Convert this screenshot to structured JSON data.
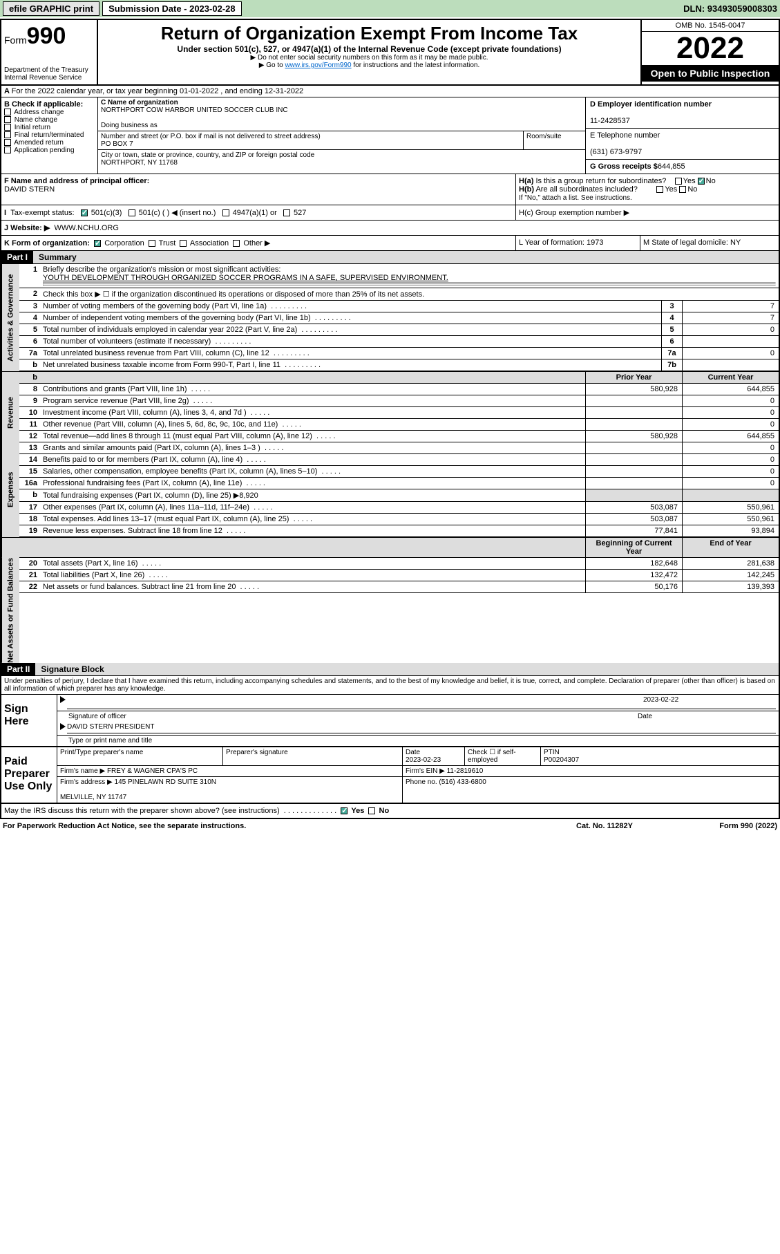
{
  "topbar": {
    "efile": "efile GRAPHIC print",
    "sub_label": "Submission Date - 2023-02-28",
    "dln": "DLN: 93493059008303"
  },
  "header": {
    "form_prefix": "Form",
    "form_num": "990",
    "dept": "Department of the Treasury",
    "irs": "Internal Revenue Service",
    "title": "Return of Organization Exempt From Income Tax",
    "subtitle": "Under section 501(c), 527, or 4947(a)(1) of the Internal Revenue Code (except private foundations)",
    "note1": "▶ Do not enter social security numbers on this form as it may be made public.",
    "note2_pre": "▶ Go to ",
    "note2_link": "www.irs.gov/Form990",
    "note2_post": " for instructions and the latest information.",
    "omb": "OMB No. 1545-0047",
    "year": "2022",
    "open": "Open to Public Inspection"
  },
  "section_a": {
    "taxyear": "For the 2022 calendar year, or tax year beginning 01-01-2022    , and ending 12-31-2022",
    "b_label": "B Check if applicable:",
    "b_items": [
      "Address change",
      "Name change",
      "Initial return",
      "Final return/terminated",
      "Amended return",
      "Application pending"
    ],
    "c_label": "C Name of organization",
    "org_name": "NORTHPORT COW HARBOR UNITED SOCCER CLUB INC",
    "dba_label": "Doing business as",
    "addr_label": "Number and street (or P.O. box if mail is not delivered to street address)",
    "room_label": "Room/suite",
    "addr": "PO BOX 7",
    "city_label": "City or town, state or province, country, and ZIP or foreign postal code",
    "city": "NORTHPORT, NY  11768",
    "d_label": "D Employer identification number",
    "ein": "11-2428537",
    "e_label": "E Telephone number",
    "phone": "(631) 673-9797",
    "g_label": "G Gross receipts $",
    "gross": "644,855",
    "f_label": "F  Name and address of principal officer:",
    "officer": "DAVID STERN",
    "ha_label": "H(a)  Is this a group return for subordinates?",
    "hb_label": "H(b)  Are all subordinates included?",
    "hb_note": "If \"No,\" attach a list. See instructions.",
    "hc_label": "H(c)  Group exemption number ▶",
    "yes": "Yes",
    "no": "No"
  },
  "section_i": {
    "label": "Tax-exempt status:",
    "opt1": "501(c)(3)",
    "opt2": "501(c) (  ) ◀ (insert no.)",
    "opt3": "4947(a)(1) or",
    "opt4": "527"
  },
  "section_j": {
    "label": "J   Website: ▶",
    "value": "WWW.NCHU.ORG"
  },
  "section_k": {
    "label": "K Form of organization:",
    "opts": [
      "Corporation",
      "Trust",
      "Association",
      "Other ▶"
    ],
    "l_label": "L Year of formation: 1973",
    "m_label": "M State of legal domicile: NY"
  },
  "part1": {
    "hdr": "Part I",
    "title": "Summary",
    "tab_gov": "Activities & Governance",
    "tab_rev": "Revenue",
    "tab_exp": "Expenses",
    "tab_net": "Net Assets or Fund Balances",
    "l1_label": "Briefly describe the organization's mission or most significant activities:",
    "l1_mission": "YOUTH DEVELOPMENT THROUGH ORGANIZED SOCCER PROGRAMS IN A SAFE, SUPERVISED ENVIRONMENT.",
    "l2_label": "Check this box ▶ ☐ if the organization discontinued its operations or disposed of more than 25% of its net assets.",
    "lines_gov": [
      {
        "n": "3",
        "d": "Number of voting members of the governing body (Part VI, line 1a)",
        "box": "3",
        "v": "7"
      },
      {
        "n": "4",
        "d": "Number of independent voting members of the governing body (Part VI, line 1b)",
        "box": "4",
        "v": "7"
      },
      {
        "n": "5",
        "d": "Total number of individuals employed in calendar year 2022 (Part V, line 2a)",
        "box": "5",
        "v": "0"
      },
      {
        "n": "6",
        "d": "Total number of volunteers (estimate if necessary)",
        "box": "6",
        "v": ""
      },
      {
        "n": "7a",
        "d": "Total unrelated business revenue from Part VIII, column (C), line 12",
        "box": "7a",
        "v": "0"
      },
      {
        "n": "b",
        "d": "Net unrelated business taxable income from Form 990-T, Part I, line 11",
        "box": "7b",
        "v": ""
      }
    ],
    "col_prior": "Prior Year",
    "col_curr": "Current Year",
    "lines_rev": [
      {
        "n": "8",
        "d": "Contributions and grants (Part VIII, line 1h)",
        "p": "580,928",
        "c": "644,855"
      },
      {
        "n": "9",
        "d": "Program service revenue (Part VIII, line 2g)",
        "p": "",
        "c": "0"
      },
      {
        "n": "10",
        "d": "Investment income (Part VIII, column (A), lines 3, 4, and 7d )",
        "p": "",
        "c": "0"
      },
      {
        "n": "11",
        "d": "Other revenue (Part VIII, column (A), lines 5, 6d, 8c, 9c, 10c, and 11e)",
        "p": "",
        "c": "0"
      },
      {
        "n": "12",
        "d": "Total revenue—add lines 8 through 11 (must equal Part VIII, column (A), line 12)",
        "p": "580,928",
        "c": "644,855"
      }
    ],
    "lines_exp": [
      {
        "n": "13",
        "d": "Grants and similar amounts paid (Part IX, column (A), lines 1–3 )",
        "p": "",
        "c": "0"
      },
      {
        "n": "14",
        "d": "Benefits paid to or for members (Part IX, column (A), line 4)",
        "p": "",
        "c": "0"
      },
      {
        "n": "15",
        "d": "Salaries, other compensation, employee benefits (Part IX, column (A), lines 5–10)",
        "p": "",
        "c": "0"
      },
      {
        "n": "16a",
        "d": "Professional fundraising fees (Part IX, column (A), line 11e)",
        "p": "",
        "c": "0"
      },
      {
        "n": "b",
        "d": "Total fundraising expenses (Part IX, column (D), line 25) ▶8,920",
        "p": null,
        "c": null
      },
      {
        "n": "17",
        "d": "Other expenses (Part IX, column (A), lines 11a–11d, 11f–24e)",
        "p": "503,087",
        "c": "550,961"
      },
      {
        "n": "18",
        "d": "Total expenses. Add lines 13–17 (must equal Part IX, column (A), line 25)",
        "p": "503,087",
        "c": "550,961"
      },
      {
        "n": "19",
        "d": "Revenue less expenses. Subtract line 18 from line 12",
        "p": "77,841",
        "c": "93,894"
      }
    ],
    "col_beg": "Beginning of Current Year",
    "col_end": "End of Year",
    "lines_net": [
      {
        "n": "20",
        "d": "Total assets (Part X, line 16)",
        "p": "182,648",
        "c": "281,638"
      },
      {
        "n": "21",
        "d": "Total liabilities (Part X, line 26)",
        "p": "132,472",
        "c": "142,245"
      },
      {
        "n": "22",
        "d": "Net assets or fund balances. Subtract line 21 from line 20",
        "p": "50,176",
        "c": "139,393"
      }
    ]
  },
  "part2": {
    "hdr": "Part II",
    "title": "Signature Block",
    "decl": "Under penalties of perjury, I declare that I have examined this return, including accompanying schedules and statements, and to the best of my knowledge and belief, it is true, correct, and complete. Declaration of preparer (other than officer) is based on all information of which preparer has any knowledge.",
    "sign_here": "Sign Here",
    "sig_officer": "Signature of officer",
    "sig_date": "Date",
    "sig_date_val": "2023-02-22",
    "sig_name": "DAVID STERN  PRESIDENT",
    "sig_name_label": "Type or print name and title",
    "paid_prep": "Paid Preparer Use Only",
    "prep_name_label": "Print/Type preparer's name",
    "prep_sig_label": "Preparer's signature",
    "prep_date_label": "Date",
    "prep_date": "2023-02-23",
    "prep_check_label": "Check ☐ if self-employed",
    "prep_ptin_label": "PTIN",
    "prep_ptin": "P00204307",
    "firm_name_label": "Firm's name    ▶",
    "firm_name": "FREY & WAGNER CPA'S PC",
    "firm_ein_label": "Firm's EIN ▶",
    "firm_ein": "11-2819610",
    "firm_addr_label": "Firm's address ▶",
    "firm_addr": "145 PINELAWN RD SUITE 310N",
    "firm_city": "MELVILLE, NY  11747",
    "firm_phone_label": "Phone no.",
    "firm_phone": "(516) 433-6800",
    "may_irs": "May the IRS discuss this return with the preparer shown above? (see instructions)"
  },
  "footer": {
    "left": "For Paperwork Reduction Act Notice, see the separate instructions.",
    "mid": "Cat. No. 11282Y",
    "right": "Form 990 (2022)"
  }
}
